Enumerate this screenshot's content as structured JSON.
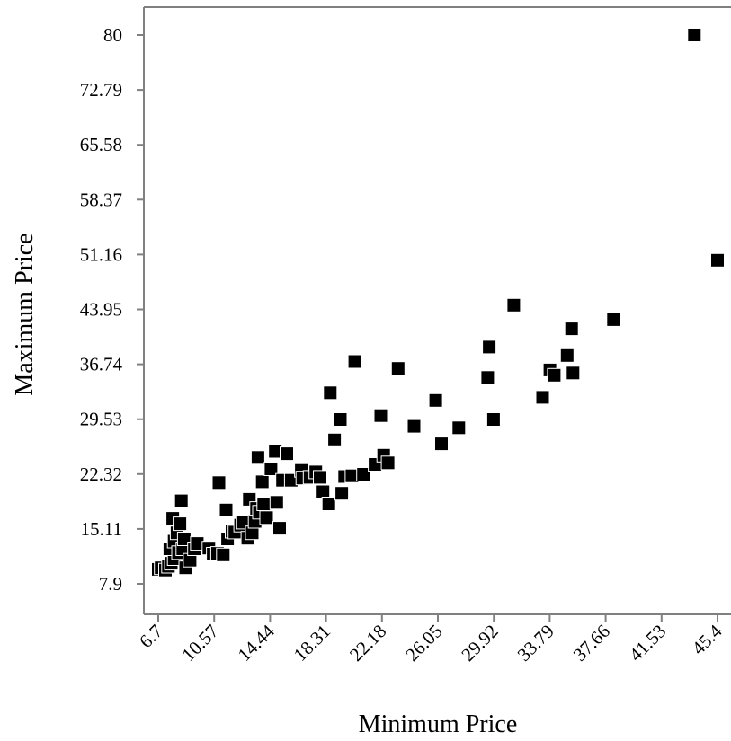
{
  "chart_data": {
    "type": "scatter",
    "xlabel": "Minimum Price",
    "ylabel": "Maximum Price",
    "x_ticks": [
      "6.7",
      "10.57",
      "14.44",
      "18.31",
      "22.18",
      "26.05",
      "29.92",
      "33.79",
      "37.66",
      "41.53",
      "45.4"
    ],
    "y_ticks": [
      "7.9",
      "15.11",
      "22.32",
      "29.53",
      "36.74",
      "43.95",
      "51.16",
      "58.37",
      "65.58",
      "72.79",
      "80"
    ],
    "xlim": [
      6.7,
      45.4
    ],
    "ylim": [
      7.9,
      80
    ],
    "marker": "square",
    "marker_color": "#000000",
    "points": [
      [
        6.7,
        9.8
      ],
      [
        6.9,
        10.0
      ],
      [
        7.2,
        9.7
      ],
      [
        7.4,
        10.2
      ],
      [
        7.6,
        10.6
      ],
      [
        7.8,
        11.2
      ],
      [
        7.5,
        12.5
      ],
      [
        7.8,
        13.5
      ],
      [
        7.7,
        16.5
      ],
      [
        8.0,
        14.6
      ],
      [
        8.2,
        15.8
      ],
      [
        8.3,
        18.8
      ],
      [
        8.1,
        12.0
      ],
      [
        8.4,
        12.5
      ],
      [
        8.5,
        13.8
      ],
      [
        8.6,
        10.0
      ],
      [
        8.9,
        11.0
      ],
      [
        9.2,
        12.5
      ],
      [
        9.4,
        13.2
      ],
      [
        10.2,
        12.6
      ],
      [
        10.5,
        11.8
      ],
      [
        10.8,
        11.9
      ],
      [
        11.2,
        11.7
      ],
      [
        10.9,
        21.2
      ],
      [
        11.5,
        13.8
      ],
      [
        11.4,
        17.6
      ],
      [
        11.8,
        14.8
      ],
      [
        12.0,
        14.7
      ],
      [
        12.4,
        15.6
      ],
      [
        12.6,
        16.0
      ],
      [
        12.9,
        13.9
      ],
      [
        13.2,
        14.6
      ],
      [
        13.0,
        19.0
      ],
      [
        13.4,
        16.1
      ],
      [
        13.5,
        17.8
      ],
      [
        13.7,
        17.3
      ],
      [
        13.6,
        24.5
      ],
      [
        13.9,
        21.3
      ],
      [
        14.0,
        18.4
      ],
      [
        14.2,
        16.6
      ],
      [
        14.5,
        23.0
      ],
      [
        14.8,
        25.3
      ],
      [
        14.9,
        18.6
      ],
      [
        15.1,
        15.2
      ],
      [
        15.3,
        21.5
      ],
      [
        15.6,
        25.0
      ],
      [
        15.9,
        21.5
      ],
      [
        16.6,
        22.8
      ],
      [
        16.7,
        21.8
      ],
      [
        17.2,
        21.9
      ],
      [
        17.6,
        22.6
      ],
      [
        17.9,
        21.9
      ],
      [
        18.1,
        20.0
      ],
      [
        18.5,
        18.4
      ],
      [
        18.6,
        33.0
      ],
      [
        18.9,
        26.8
      ],
      [
        19.3,
        29.5
      ],
      [
        19.4,
        19.8
      ],
      [
        19.6,
        22.0
      ],
      [
        20.1,
        22.1
      ],
      [
        20.3,
        37.1
      ],
      [
        20.9,
        22.3
      ],
      [
        21.7,
        23.6
      ],
      [
        22.1,
        30.0
      ],
      [
        22.3,
        24.8
      ],
      [
        22.6,
        23.8
      ],
      [
        23.3,
        36.2
      ],
      [
        24.4,
        28.6
      ],
      [
        25.9,
        32.0
      ],
      [
        26.3,
        26.3
      ],
      [
        27.5,
        28.4
      ],
      [
        29.5,
        35.0
      ],
      [
        29.6,
        39.0
      ],
      [
        29.9,
        29.5
      ],
      [
        31.3,
        44.5
      ],
      [
        33.3,
        32.4
      ],
      [
        33.8,
        36.0
      ],
      [
        34.1,
        35.3
      ],
      [
        35.0,
        37.9
      ],
      [
        35.3,
        41.4
      ],
      [
        35.4,
        35.6
      ],
      [
        38.2,
        42.6
      ],
      [
        43.8,
        80.0
      ],
      [
        45.4,
        50.4
      ]
    ]
  }
}
